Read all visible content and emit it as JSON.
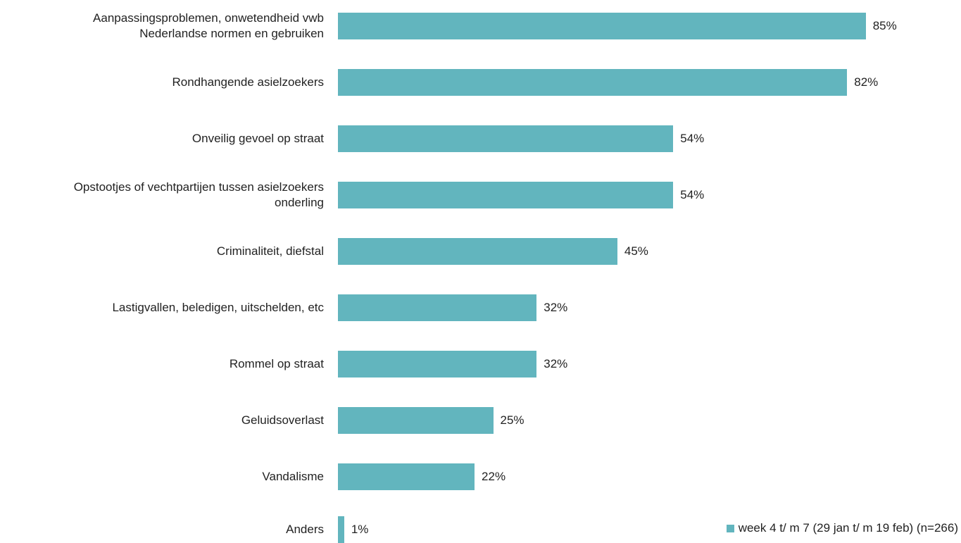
{
  "chart_data": {
    "type": "bar",
    "orientation": "horizontal",
    "categories": [
      "Aanpassingsproblemen, onwetendheid vwb\nNederlandse normen en gebruiken",
      "Rondhangende asielzoekers",
      "Onveilig gevoel op straat",
      "Opstootjes of vechtpartijen tussen asielzoekers\nonderling",
      "Criminaliteit, diefstal",
      "Lastigvallen, beledigen, uitschelden, etc",
      "Rommel op straat",
      "Geluidsoverlast",
      "Vandalisme",
      "Anders"
    ],
    "series": [
      {
        "name": "week 4 t/ m 7 (29 jan t/ m 19 feb) (n=266)",
        "color": "#62b5be",
        "values": [
          85,
          82,
          54,
          54,
          45,
          32,
          32,
          25,
          22,
          1
        ],
        "value_labels": [
          "85%",
          "82%",
          "54%",
          "54%",
          "45%",
          "32%",
          "32%",
          "25%",
          "22%",
          "1%"
        ]
      }
    ],
    "xlim": [
      0,
      100
    ],
    "legend": "bottom-right"
  }
}
